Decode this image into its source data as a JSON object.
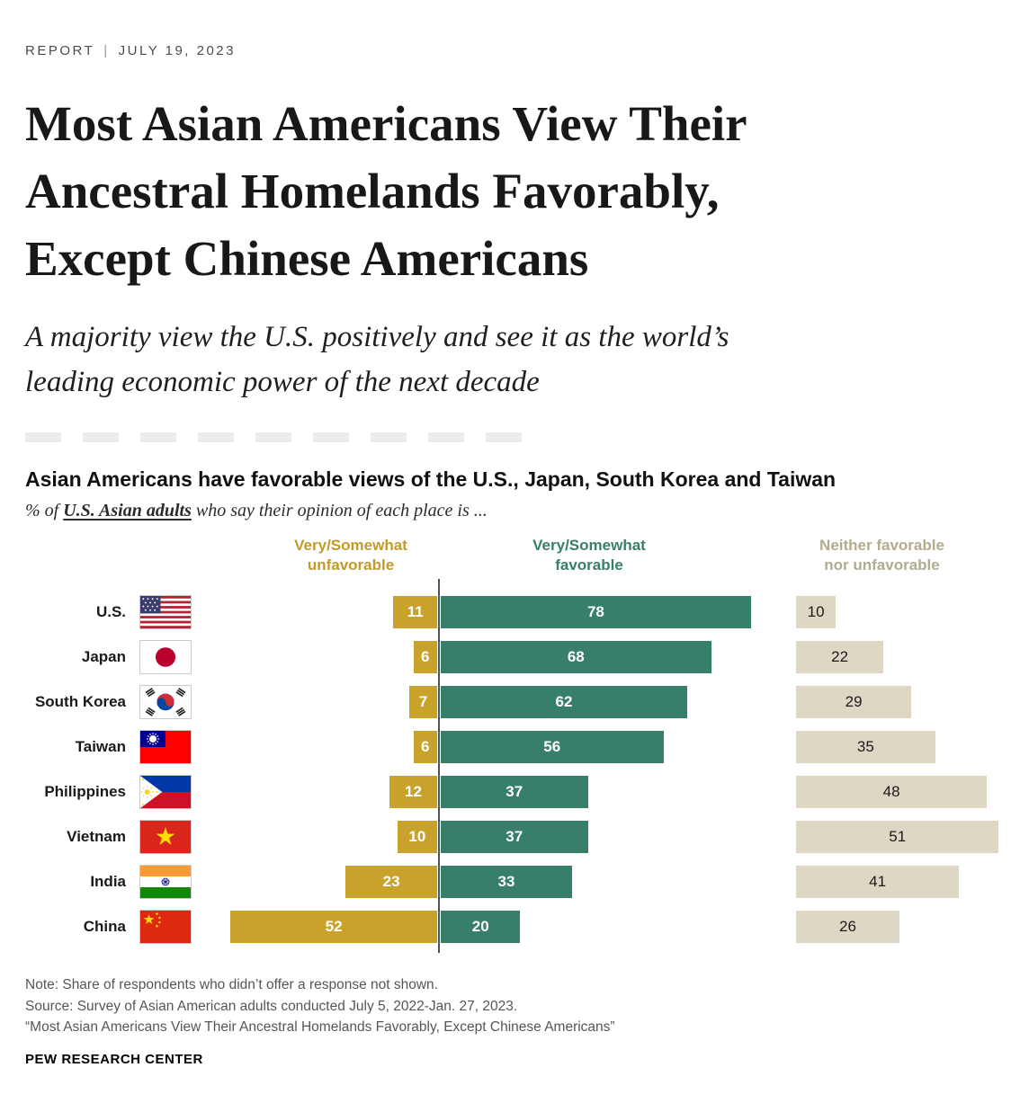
{
  "page": {
    "eyebrow_label": "REPORT",
    "eyebrow_separator": "|",
    "eyebrow_date": "JULY 19, 2023",
    "headline": "Most Asian Americans View Their\nAncestral Homelands Favorably,\nExcept Chinese Americans",
    "subtitle": "A majority view the U.S. positively and see it as the world’s\nleading economic power of the next decade"
  },
  "chart_data": {
    "type": "bar",
    "orientation": "horizontal-diverging",
    "title": "Asian Americans have favorable views of the U.S., Japan, South Korea and Taiwan",
    "subtitle_prefix": "% of ",
    "subtitle_emphasis": "U.S. Asian adults",
    "subtitle_suffix": " who say their opinion of each place is ...",
    "value_unit": "percent",
    "xlim": [
      0,
      100
    ],
    "axis_line": true,
    "legend_position": "top",
    "categories": [
      "U.S.",
      "Japan",
      "South Korea",
      "Taiwan",
      "Philippines",
      "Vietnam",
      "India",
      "China"
    ],
    "flags": [
      "us",
      "japan",
      "south-korea",
      "taiwan",
      "philippines",
      "vietnam",
      "india",
      "china"
    ],
    "series": [
      {
        "name": "Very/Somewhat unfavorable",
        "key": "unfavorable",
        "color": "#c9a22c",
        "header_color": "#c19a28",
        "values": [
          11,
          6,
          7,
          6,
          12,
          10,
          23,
          52
        ]
      },
      {
        "name": "Very/Somewhat favorable",
        "key": "favorable",
        "color": "#377f6b",
        "header_color": "#377f6b",
        "values": [
          78,
          68,
          62,
          56,
          37,
          37,
          33,
          20
        ]
      },
      {
        "name": "Neither favorable nor unfavorable",
        "key": "neither",
        "color": "#ddd7c4",
        "header_color": "#b3ab8f",
        "values": [
          10,
          22,
          29,
          35,
          48,
          51,
          41,
          26
        ]
      }
    ]
  },
  "notes": {
    "note": "Note: Share of respondents who didn’t offer a response not shown.",
    "source": "Source: Survey of Asian American adults conducted July 5, 2022-Jan. 27, 2023.",
    "citation": "“Most Asian Americans View Their Ancestral Homelands Favorably, Except Chinese Americans”"
  },
  "footer": {
    "brand": "PEW RESEARCH CENTER"
  }
}
